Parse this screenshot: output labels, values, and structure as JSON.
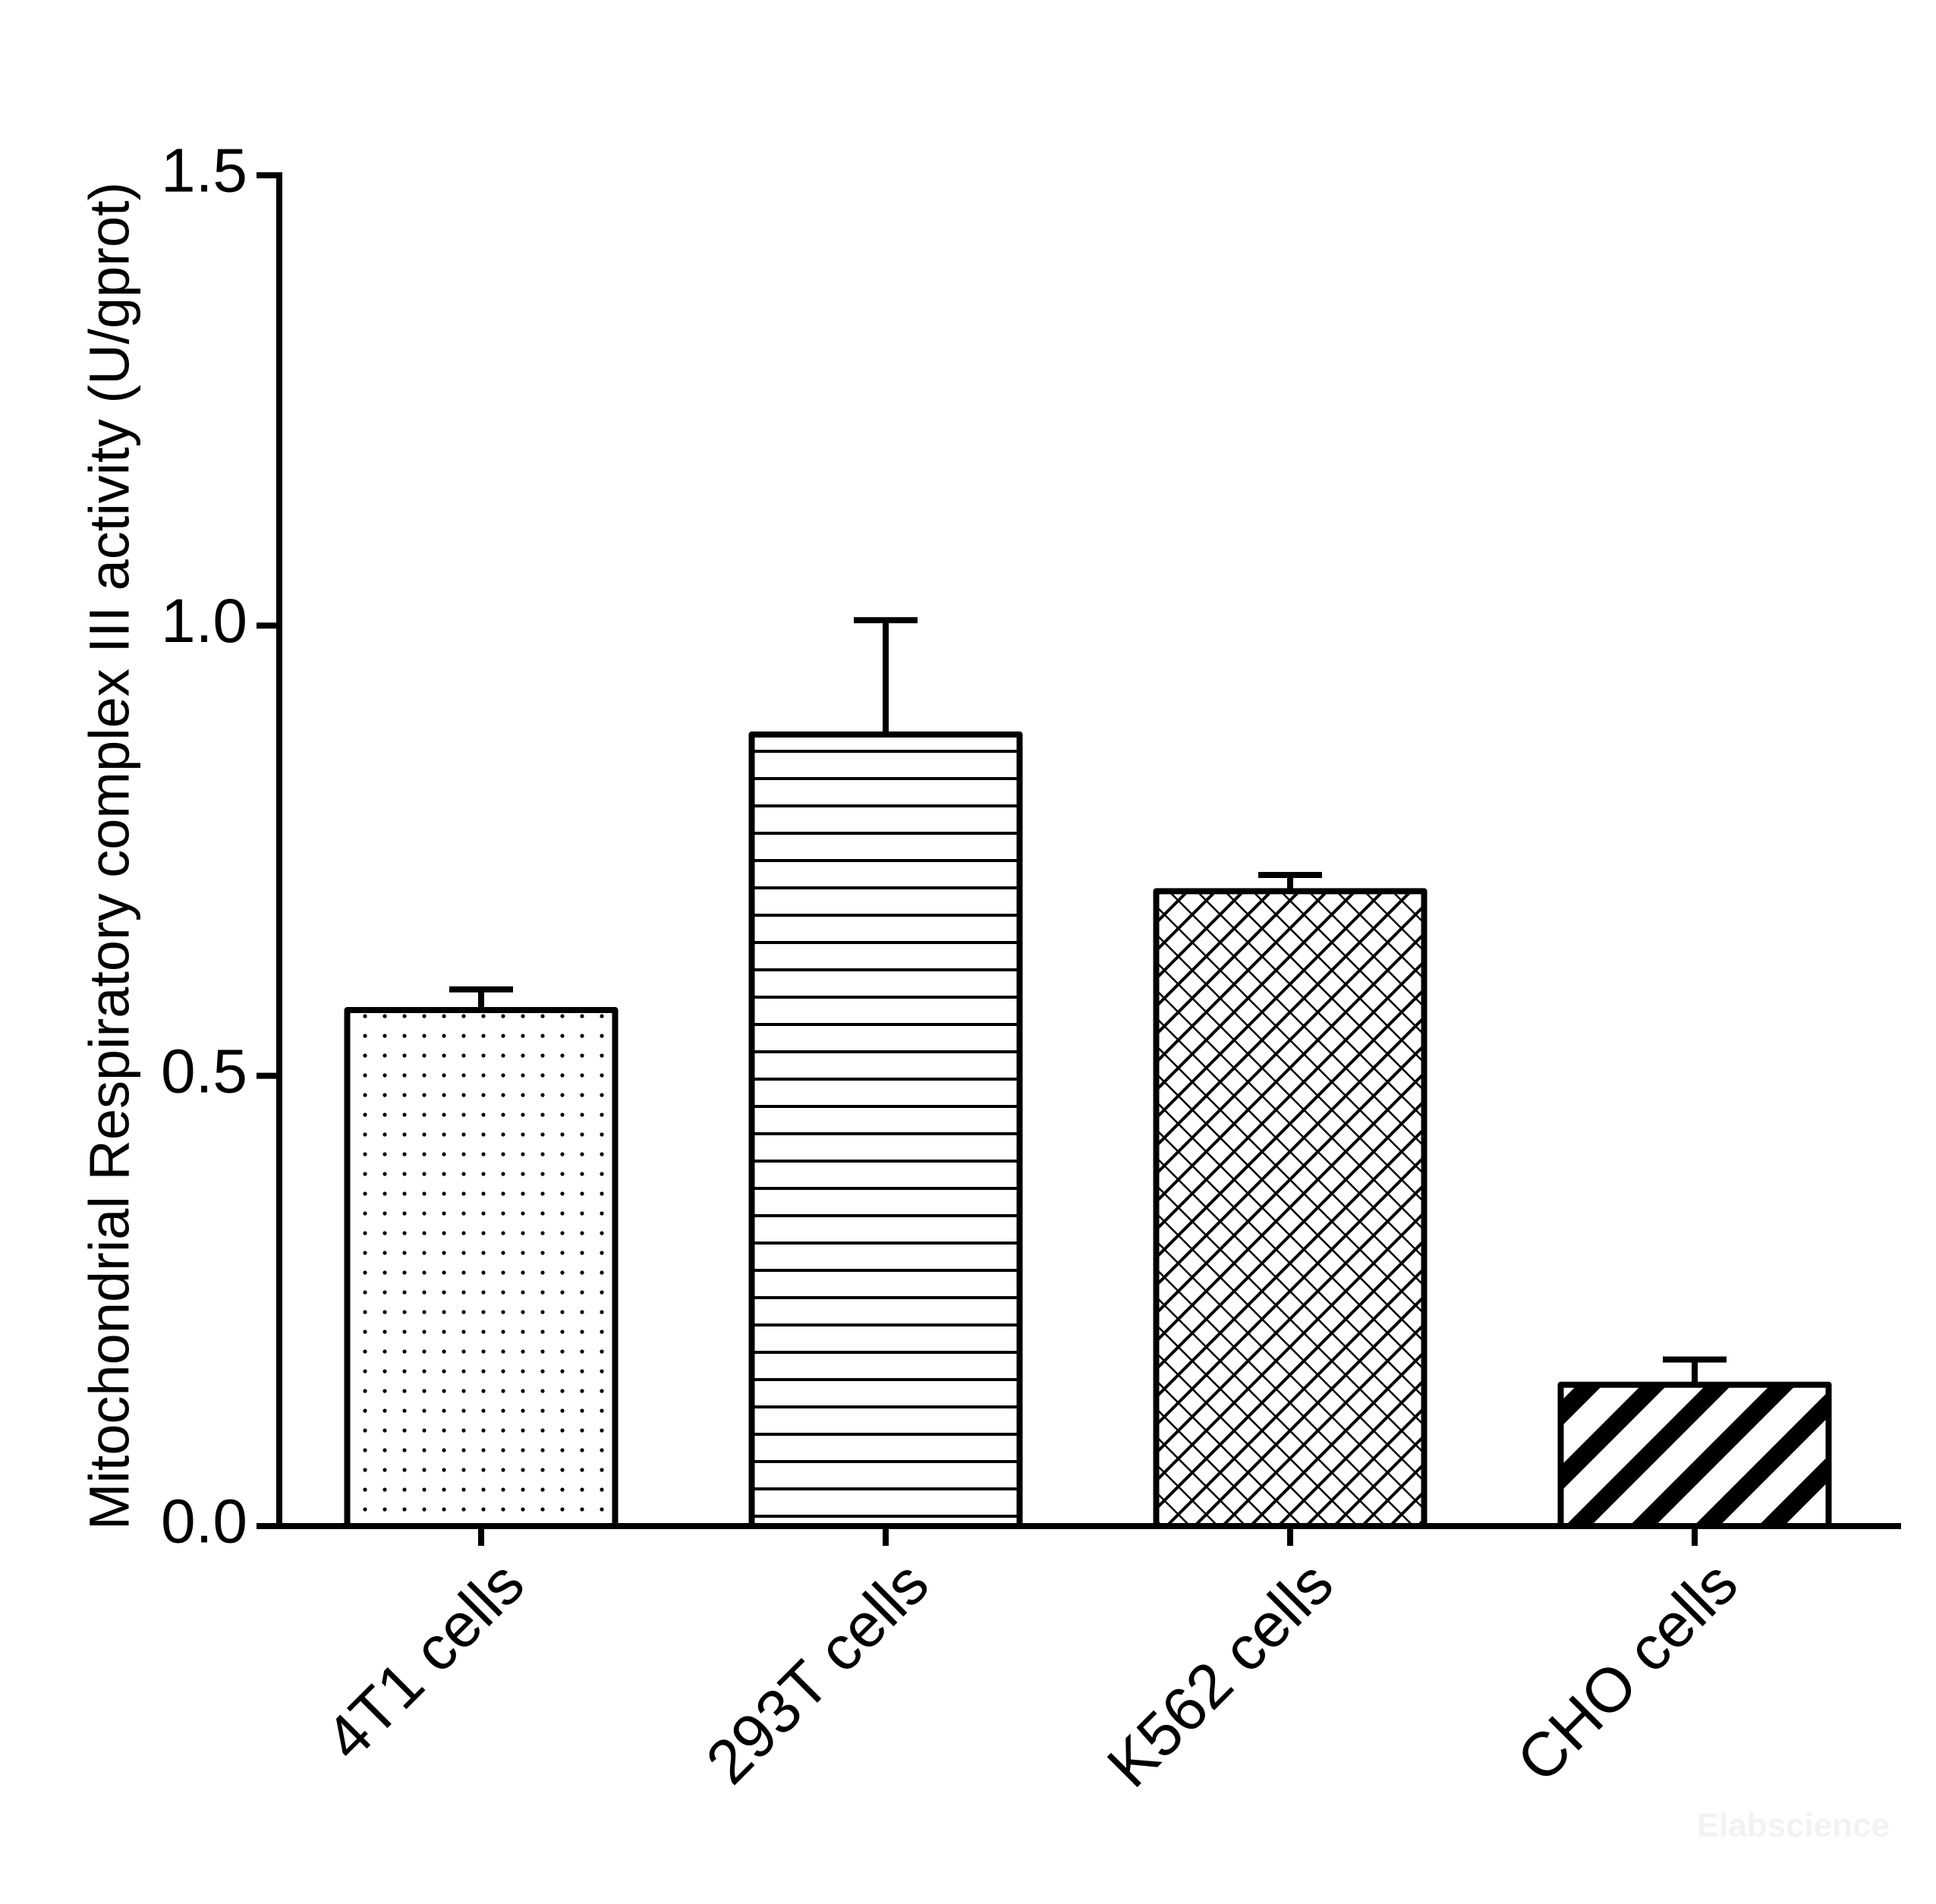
{
  "chart_data": {
    "type": "bar",
    "y_label": "Mitochondrial Respiratory complex III activity (U/gprot)",
    "categories": [
      "4T1 cells",
      "293T cells",
      "K562 cells",
      "CHO cells"
    ],
    "values": [
      0.573,
      0.879,
      0.705,
      0.157
    ],
    "errors": [
      0.023,
      0.127,
      0.018,
      0.028
    ],
    "patterns": [
      "dots",
      "horizontal",
      "crosshatch",
      "diagonal"
    ],
    "color": "#000000",
    "ylim": [
      0,
      1.5
    ],
    "yticks": [
      {
        "value": 0,
        "label": "0.0"
      },
      0.5,
      {
        "value": 1,
        "label": "1.0"
      },
      1.5
    ],
    "watermark": "Elabscience"
  }
}
